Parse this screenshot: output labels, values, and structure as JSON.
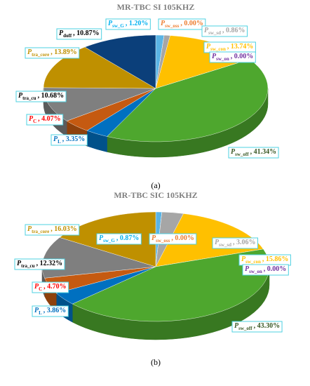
{
  "chart_data": [
    {
      "type": "pie",
      "title": "MR-TBC SI 105KHZ",
      "caption": "(a)",
      "categories": [
        {
          "symbol": "P",
          "subscript": "sw_G"
        },
        {
          "symbol": "P",
          "subscript": "sw_oss"
        },
        {
          "symbol": "P",
          "subscript": "sw_sd"
        },
        {
          "symbol": "P",
          "subscript": "sw_con"
        },
        {
          "symbol": "P",
          "subscript": "sw_on"
        },
        {
          "symbol": "P",
          "subscript": "sw_off"
        },
        {
          "symbol": "P",
          "subscript": "L"
        },
        {
          "symbol": "P",
          "subscript": "C"
        },
        {
          "symbol": "P",
          "subscript": "tra_cu"
        },
        {
          "symbol": "P",
          "subscript": "tra_core"
        },
        {
          "symbol": "P",
          "subscript": "doff"
        }
      ],
      "values": [
        1.2,
        0.0,
        0.86,
        13.74,
        0.0,
        41.34,
        3.35,
        4.07,
        10.68,
        13.89,
        10.87
      ],
      "value_labels": [
        ", 1.20%",
        ", 0.00%",
        ", 0.86%",
        ", 13.74%",
        ", 0.00%",
        ", 41.34%",
        ", 3.35%",
        ", 4.07%",
        ", 10.68%",
        ", 13.89%",
        ", 10.87%"
      ],
      "colors": [
        "#5ab4e5",
        "#ed7d31",
        "#a6a6a6",
        "#ffc000",
        "#7030a0",
        "#4ea72e",
        "#0070c0",
        "#c55a11",
        "#7f7f7f",
        "#bf9000",
        "#0b3f7a"
      ],
      "label_colors": [
        "#00b0f0",
        "#ed7d31",
        "#a6a6a6",
        "#ffc000",
        "#7030a0",
        "#375623",
        "#0070c0",
        "#ff0000",
        "#000000",
        "#bf9000",
        "#000000"
      ]
    },
    {
      "type": "pie",
      "title": "MR-TBC SIC 105KHZ",
      "caption": "(b)",
      "categories": [
        {
          "symbol": "P",
          "subscript": "sw_G"
        },
        {
          "symbol": "P",
          "subscript": "sw_oss"
        },
        {
          "symbol": "P",
          "subscript": "sw_sd"
        },
        {
          "symbol": "P",
          "subscript": "sw_con"
        },
        {
          "symbol": "P",
          "subscript": "sw_on"
        },
        {
          "symbol": "P",
          "subscript": "sw_off"
        },
        {
          "symbol": "P",
          "subscript": "L"
        },
        {
          "symbol": "P",
          "subscript": "C"
        },
        {
          "symbol": "P",
          "subscript": "tra_cu"
        },
        {
          "symbol": "P",
          "subscript": "tra_core"
        }
      ],
      "values": [
        0.87,
        0.0,
        3.06,
        15.86,
        0.0,
        43.3,
        3.86,
        4.7,
        12.32,
        16.03
      ],
      "value_labels": [
        ", 0.87%",
        ", 0.00%",
        ", 3.06%",
        ", 15.86%",
        ", 0.00%",
        ", 43.30%",
        ", 3.86%",
        ", 4.70%",
        ", 12.32%",
        ", 16.03%"
      ],
      "colors": [
        "#5ab4e5",
        "#ed7d31",
        "#a6a6a6",
        "#ffc000",
        "#7030a0",
        "#4ea72e",
        "#0070c0",
        "#c55a11",
        "#7f7f7f",
        "#bf9000"
      ],
      "label_colors": [
        "#00b0f0",
        "#ed7d31",
        "#a6a6a6",
        "#ffc000",
        "#7030a0",
        "#375623",
        "#0070c0",
        "#ff0000",
        "#000000",
        "#bf9000"
      ]
    }
  ]
}
